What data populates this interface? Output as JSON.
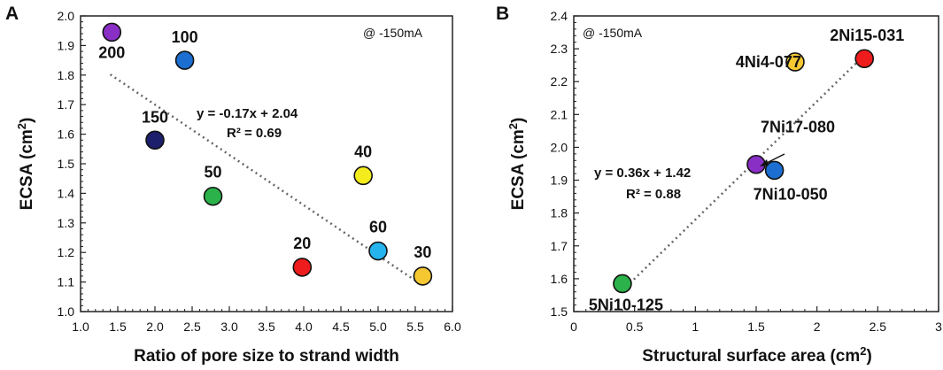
{
  "chart_data": [
    {
      "panel": "A",
      "type": "scatter",
      "xlabel": "Ratio of pore size to strand width",
      "ylabel_main": "ECSA (cm",
      "ylabel_sup": "2",
      "ylabel_end": ")",
      "xlim": [
        1.0,
        6.0
      ],
      "ylim": [
        1.0,
        2.0
      ],
      "xticks": [
        "1.0",
        "1.5",
        "2.0",
        "2.5",
        "3.0",
        "3.5",
        "4.0",
        "4.5",
        "5.0",
        "5.5",
        "6.0"
      ],
      "yticks": [
        "1.0",
        "1.1",
        "1.2",
        "1.3",
        "1.4",
        "1.5",
        "1.6",
        "1.7",
        "1.8",
        "1.9",
        "2.0"
      ],
      "annotation": "@ -150mA",
      "fit": {
        "equation": "y = -0.17x + 2.04",
        "r2": "R² = 0.69",
        "x": [
          1.4,
          5.6
        ],
        "y": [
          1.802,
          1.088
        ]
      },
      "points": [
        {
          "label": "200",
          "x": 1.42,
          "y": 1.945,
          "color": "#8a2fc6"
        },
        {
          "label": "100",
          "x": 2.4,
          "y": 1.85,
          "color": "#1c6fd1"
        },
        {
          "label": "150",
          "x": 2.0,
          "y": 1.58,
          "color": "#1c1f6b"
        },
        {
          "label": "50",
          "x": 2.78,
          "y": 1.39,
          "color": "#2bb24a"
        },
        {
          "label": "40",
          "x": 4.8,
          "y": 1.46,
          "color": "#f4ec1c"
        },
        {
          "label": "20",
          "x": 3.98,
          "y": 1.15,
          "color": "#ee1c1c"
        },
        {
          "label": "60",
          "x": 5.0,
          "y": 1.205,
          "color": "#25b4ee"
        },
        {
          "label": "30",
          "x": 5.6,
          "y": 1.12,
          "color": "#f5c832"
        }
      ]
    },
    {
      "panel": "B",
      "type": "scatter",
      "xlabel_main": "Structural surface area (cm",
      "xlabel_sup": "2",
      "xlabel_end": ")",
      "ylabel_main": "ECSA (cm",
      "ylabel_sup": "2",
      "ylabel_end": ")",
      "xlim": [
        0,
        3
      ],
      "ylim": [
        1.5,
        2.4
      ],
      "xticks": [
        "0",
        "0.5",
        "1",
        "1.5",
        "2",
        "2.5",
        "3"
      ],
      "yticks": [
        "1.5",
        "1.6",
        "1.7",
        "1.8",
        "1.9",
        "2.0",
        "2.1",
        "2.2",
        "2.3",
        "2.4"
      ],
      "annotation": "@ -150mA",
      "fit": {
        "equation": "y = 0.36x + 1.42",
        "r2": "R² = 0.88",
        "x": [
          0.4,
          2.4
        ],
        "y": [
          1.564,
          2.284
        ]
      },
      "points": [
        {
          "label": "2Ni15-031",
          "x": 2.39,
          "y": 2.27,
          "color": "#ee1c1c"
        },
        {
          "label": "4Ni4-077",
          "x": 1.82,
          "y": 2.26,
          "color": "#f5c832"
        },
        {
          "label": "7Ni17-080",
          "x": 1.5,
          "y": 1.948,
          "color": "#8a2fc6"
        },
        {
          "label": "7Ni10-050",
          "x": 1.65,
          "y": 1.93,
          "color": "#1c6fd1"
        },
        {
          "label": "5Ni10-125",
          "x": 0.4,
          "y": 1.585,
          "color": "#2bb24a"
        }
      ]
    }
  ]
}
